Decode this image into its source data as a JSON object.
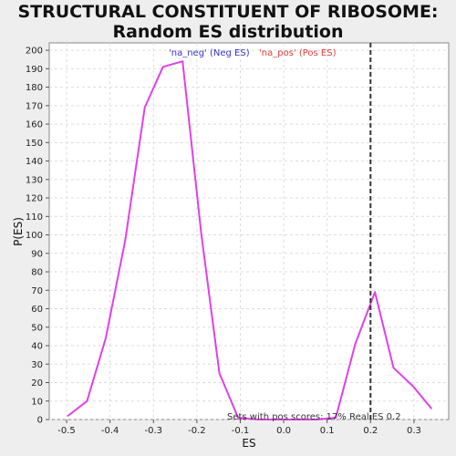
{
  "chart_data": {
    "type": "line",
    "title": "STRUCTURAL CONSTITUENT OF RIBOSOME: Random ES distribution",
    "xlabel": "ES",
    "ylabel": "P(ES)",
    "xlim": [
      -0.54,
      0.38
    ],
    "ylim": [
      0,
      204
    ],
    "xticks": [
      "-0.5",
      "-0.4",
      "-0.3",
      "-0.2",
      "-0.1",
      "0.0",
      "0.1",
      "0.2",
      "0.3"
    ],
    "yticks": [
      "0",
      "10",
      "20",
      "30",
      "40",
      "50",
      "60",
      "70",
      "80",
      "90",
      "100",
      "110",
      "120",
      "130",
      "140",
      "150",
      "160",
      "170",
      "180",
      "190",
      "200"
    ],
    "grid": true,
    "legend": [
      {
        "label": "'na_neg' (Neg ES)",
        "color": "#3333cc"
      },
      {
        "label": "'na_pos' (Pos ES)",
        "color": "#e03c3c"
      }
    ],
    "line_color": "#e040e8",
    "series": [
      {
        "x": [
          -0.497,
          -0.453,
          -0.41,
          -0.365,
          -0.32,
          -0.278,
          -0.233,
          -0.19,
          -0.148,
          -0.105,
          -0.06,
          -0.015,
          0.03,
          0.075,
          0.12,
          0.165,
          0.21,
          0.253,
          0.298,
          0.34
        ],
        "y": [
          2,
          10,
          44,
          97,
          169,
          191,
          194,
          101,
          25,
          1,
          0,
          0,
          0,
          0,
          1,
          41,
          69,
          28,
          18,
          6
        ]
      }
    ],
    "vline": {
      "x": 0.2,
      "color": "#333333"
    },
    "annotation": "Sets with pos scores: 17%  Real ES 0.2"
  }
}
